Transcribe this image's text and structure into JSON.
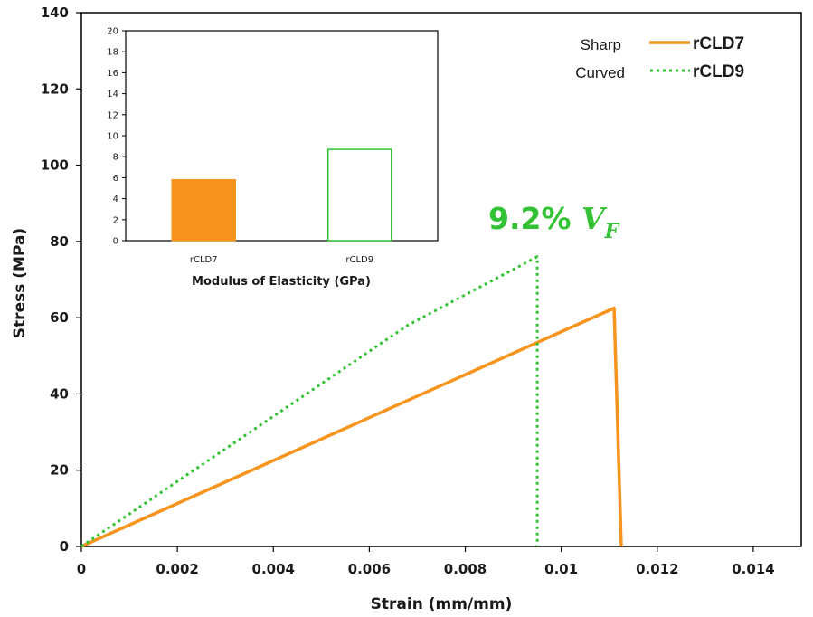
{
  "chart_data": [
    {
      "type": "line",
      "title": "",
      "xlabel": "Strain (mm/mm)",
      "ylabel": "Stress (MPa)",
      "xlim": [
        0,
        0.015
      ],
      "ylim": [
        0,
        140
      ],
      "x_ticks": [
        "0",
        "0.002",
        "0.004",
        "0.006",
        "0.008",
        "0.01",
        "0.012",
        "0.014"
      ],
      "y_ticks": [
        "0",
        "20",
        "40",
        "60",
        "80",
        "100",
        "120",
        "140"
      ],
      "grid": false,
      "legend_position": "top-right",
      "series": [
        {
          "name": "rCLD7",
          "description": "Sharp",
          "color": "#f7941d",
          "style": "solid",
          "points": [
            [
              0,
              0
            ],
            [
              0.0111,
              62.5
            ],
            [
              0.01125,
              0
            ]
          ]
        },
        {
          "name": "rCLD9",
          "description": "Curved",
          "color": "#33c233",
          "style": "dotted",
          "points": [
            [
              0,
              0
            ],
            [
              0.0068,
              58
            ],
            [
              0.0095,
              76
            ],
            [
              0.0095,
              0
            ]
          ]
        }
      ],
      "annotation": {
        "text": "9.2% ",
        "symbol": "V",
        "subscript": "F",
        "color": "#33c233"
      }
    },
    {
      "type": "bar",
      "title": "",
      "xlabel": "Modulus of Elasticity (GPa)",
      "ylabel": "",
      "categories": [
        "rCLD7",
        "rCLD9"
      ],
      "values": [
        5.8,
        8.7
      ],
      "ylim": [
        0,
        20
      ],
      "y_ticks": [
        "0",
        "2",
        "4",
        "6",
        "8",
        "10",
        "12",
        "14",
        "16",
        "18",
        "20"
      ],
      "bar_styles": [
        {
          "fill": "#f7941d",
          "stroke": "#f7941d"
        },
        {
          "fill": "#ffffff",
          "stroke": "#33c233"
        }
      ]
    }
  ]
}
